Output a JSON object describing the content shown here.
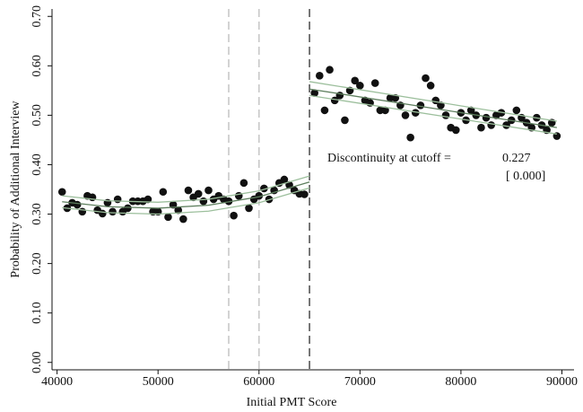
{
  "chart_data": {
    "type": "scatter",
    "x_label": "Initial PMT Score",
    "y_label": "Probability of Additional Interview",
    "xlim": [
      39500,
      91200
    ],
    "ylim": [
      -0.015,
      0.715
    ],
    "xticks": [
      40000,
      50000,
      60000,
      70000,
      80000,
      90000
    ],
    "yticks": [
      {
        "value": 0,
        "label": "0.00"
      },
      {
        "value": 0.1,
        "label": "0.10"
      },
      {
        "value": 0.2,
        "label": "0.20"
      },
      {
        "value": 0.3,
        "label": "0.30"
      },
      {
        "value": 0.4,
        "label": "0.40"
      },
      {
        "value": 0.5,
        "label": "0.50"
      },
      {
        "value": 0.6,
        "label": "0.60"
      },
      {
        "value": 0.7,
        "label": "0.70"
      }
    ],
    "series": [
      {
        "color": "#111111",
        "x": [
          40500,
          41000,
          41500,
          42000,
          42500,
          43000,
          43500,
          44000,
          44500,
          45000,
          45500,
          46000,
          46500,
          47000,
          47500,
          48000,
          48500,
          49000,
          49500,
          50000,
          50500,
          51000,
          51500,
          52000,
          52500,
          53000,
          53500,
          54000,
          54500,
          55000,
          55500,
          56000,
          56500,
          57000,
          57500,
          58000,
          58500,
          59000,
          59500,
          60000,
          60500,
          61000,
          61500,
          62000,
          62500,
          63000,
          63500,
          64000,
          64500
        ],
        "values": [
          0.345,
          0.312,
          0.323,
          0.319,
          0.305,
          0.337,
          0.334,
          0.308,
          0.301,
          0.323,
          0.305,
          0.33,
          0.305,
          0.312,
          0.326,
          0.326,
          0.326,
          0.33,
          0.305,
          0.305,
          0.345,
          0.294,
          0.319,
          0.308,
          0.29,
          0.348,
          0.334,
          0.341,
          0.326,
          0.348,
          0.33,
          0.337,
          0.33,
          0.326,
          0.297,
          0.337,
          0.363,
          0.312,
          0.33,
          0.337,
          0.352,
          0.33,
          0.348,
          0.363,
          0.37,
          0.359,
          0.348,
          0.341,
          0.34
        ]
      },
      {
        "color": "#111111",
        "x": [
          65500,
          66000,
          66500,
          67000,
          67500,
          68000,
          68500,
          69000,
          69500,
          70000,
          70500,
          71000,
          71500,
          72000,
          72500,
          73000,
          73500,
          74000,
          74500,
          75000,
          75500,
          76000,
          76500,
          77000,
          77500,
          78000,
          78500,
          79000,
          79500,
          80000,
          80500,
          81000,
          81500,
          82000,
          82500,
          83000,
          83500,
          84000,
          84500,
          85000,
          85500,
          86000,
          86500,
          87000,
          87500,
          88000,
          88500,
          89000,
          89500
        ],
        "values": [
          0.545,
          0.58,
          0.51,
          0.592,
          0.53,
          0.54,
          0.49,
          0.55,
          0.57,
          0.56,
          0.53,
          0.525,
          0.565,
          0.51,
          0.51,
          0.535,
          0.535,
          0.52,
          0.5,
          0.455,
          0.505,
          0.52,
          0.575,
          0.56,
          0.53,
          0.52,
          0.5,
          0.475,
          0.47,
          0.505,
          0.49,
          0.51,
          0.5,
          0.475,
          0.495,
          0.48,
          0.5,
          0.505,
          0.48,
          0.49,
          0.51,
          0.495,
          0.485,
          0.475,
          0.495,
          0.48,
          0.47,
          0.485,
          0.458
        ]
      }
    ],
    "fits": [
      {
        "color": "#9cbf9c",
        "x": [
          40500,
          45000,
          50000,
          55000,
          60000,
          65000
        ],
        "values": [
          0.337,
          0.327,
          0.324,
          0.33,
          0.347,
          0.377
        ]
      },
      {
        "color": "#5e7f5e",
        "x": [
          40500,
          45000,
          50000,
          55000,
          60000,
          65000
        ],
        "values": [
          0.325,
          0.315,
          0.312,
          0.318,
          0.335,
          0.365
        ]
      },
      {
        "color": "#9cbf9c",
        "x": [
          40500,
          45000,
          50000,
          55000,
          60000,
          65000
        ],
        "values": [
          0.313,
          0.303,
          0.3,
          0.306,
          0.323,
          0.353
        ]
      },
      {
        "color": "#9cbf9c",
        "x": [
          65000,
          89500
        ],
        "values": [
          0.568,
          0.488
        ]
      },
      {
        "color": "#5e7f5e",
        "x": [
          65000,
          89500
        ],
        "values": [
          0.553,
          0.475
        ]
      },
      {
        "color": "#9cbf9c",
        "x": [
          65000,
          89500
        ],
        "values": [
          0.54,
          0.462
        ]
      }
    ],
    "vlines": [
      {
        "value": 57000,
        "color": "#c8c8c8"
      },
      {
        "value": 60000,
        "color": "#c8c8c8"
      },
      {
        "value": 65000,
        "color": "#555555"
      }
    ],
    "annotation": {
      "text": "Discontinuity at cutoff =",
      "estimate": 0.227,
      "p_value": "[ 0.000]"
    }
  }
}
